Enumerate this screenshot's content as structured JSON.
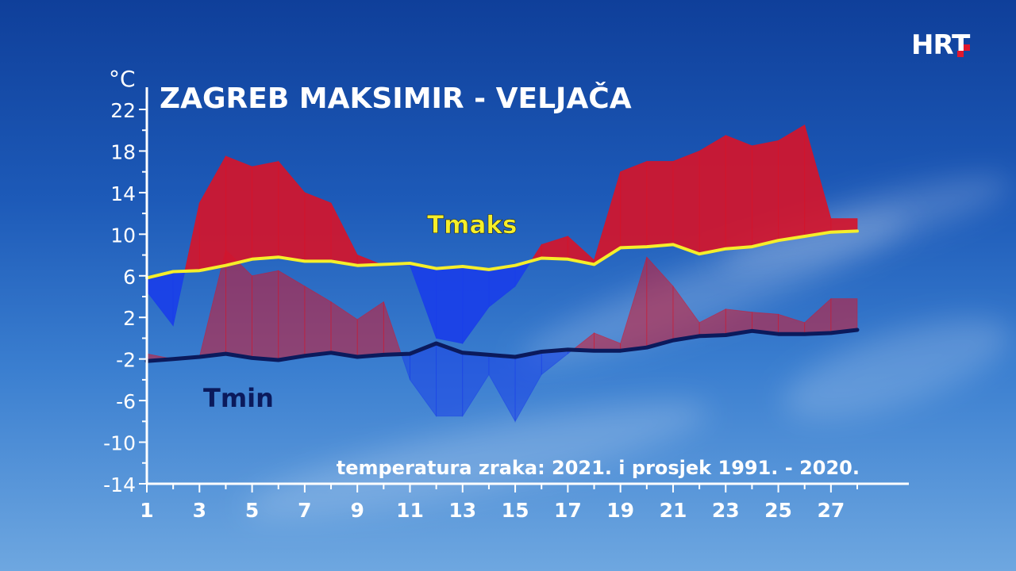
{
  "branding": {
    "logo_text": "HRT"
  },
  "chart_data": {
    "type": "area",
    "title": "ZAGREB MAKSIMIR - VELJAČA",
    "subtitle": "temperatura zraka: 2021. i prosjek 1991. - 2020.",
    "ylabel": "°C",
    "xlabel": "",
    "ylim": [
      -14,
      22
    ],
    "xlim": [
      1,
      28
    ],
    "y_ticks": [
      22,
      18,
      14,
      10,
      6,
      2,
      -2,
      -6,
      -10,
      -14
    ],
    "x_ticks": [
      1,
      3,
      5,
      7,
      9,
      11,
      13,
      15,
      17,
      19,
      21,
      23,
      25,
      27
    ],
    "x": [
      1,
      2,
      3,
      4,
      5,
      6,
      7,
      8,
      9,
      10,
      11,
      12,
      13,
      14,
      15,
      16,
      17,
      18,
      19,
      20,
      21,
      22,
      23,
      24,
      25,
      26,
      27,
      28
    ],
    "series": [
      {
        "name": "Tmaks",
        "role": "average_max",
        "color": "#f5ee2a",
        "values": [
          5.8,
          6.4,
          6.5,
          7.0,
          7.6,
          7.8,
          7.4,
          7.4,
          7.0,
          7.1,
          7.2,
          6.7,
          6.9,
          6.6,
          7.0,
          7.7,
          7.6,
          7.1,
          8.7,
          8.8,
          9.0,
          8.1,
          8.6,
          8.8,
          9.4,
          9.8,
          10.2,
          10.3
        ]
      },
      {
        "name": "Tmin",
        "role": "average_min",
        "color": "#0b1a5c",
        "values": [
          -2.2,
          -2.0,
          -1.8,
          -1.5,
          -1.9,
          -2.1,
          -1.7,
          -1.4,
          -1.8,
          -1.6,
          -1.5,
          -0.5,
          -1.4,
          -1.6,
          -1.8,
          -1.3,
          -1.1,
          -1.2,
          -1.2,
          -0.9,
          -0.2,
          0.2,
          0.3,
          0.7,
          0.4,
          0.4,
          0.5,
          0.8
        ]
      },
      {
        "name": "Tmaks 2021",
        "role": "observed_max",
        "values": [
          4.5,
          1.2,
          13.0,
          17.5,
          16.5,
          17.0,
          14.0,
          13.0,
          8.0,
          7.0,
          7.0,
          0.0,
          -0.5,
          3.0,
          5.0,
          9.0,
          9.8,
          7.5,
          16.0,
          17.0,
          17.0,
          18.0,
          19.5,
          18.5,
          19.0,
          20.5,
          11.5,
          11.5
        ]
      },
      {
        "name": "Tmin 2021",
        "role": "observed_min",
        "values": [
          -1.5,
          -2.0,
          -1.8,
          8.5,
          6.0,
          6.5,
          5.0,
          3.5,
          1.8,
          3.5,
          -4.0,
          -7.5,
          -7.5,
          -3.5,
          -8.0,
          -3.5,
          -1.5,
          0.5,
          -0.5,
          7.8,
          5.0,
          1.5,
          2.8,
          2.5,
          2.3,
          1.5,
          3.8,
          3.8
        ]
      }
    ],
    "annotations": [
      {
        "text": "Tmaks",
        "color": "#f5ee2a"
      },
      {
        "text": "Tmin",
        "color": "#0b1a5c"
      }
    ],
    "fill_colors": {
      "above_average": "#d4152b",
      "below_average": "#1a3fe8"
    },
    "grid": false,
    "legend": "none"
  }
}
